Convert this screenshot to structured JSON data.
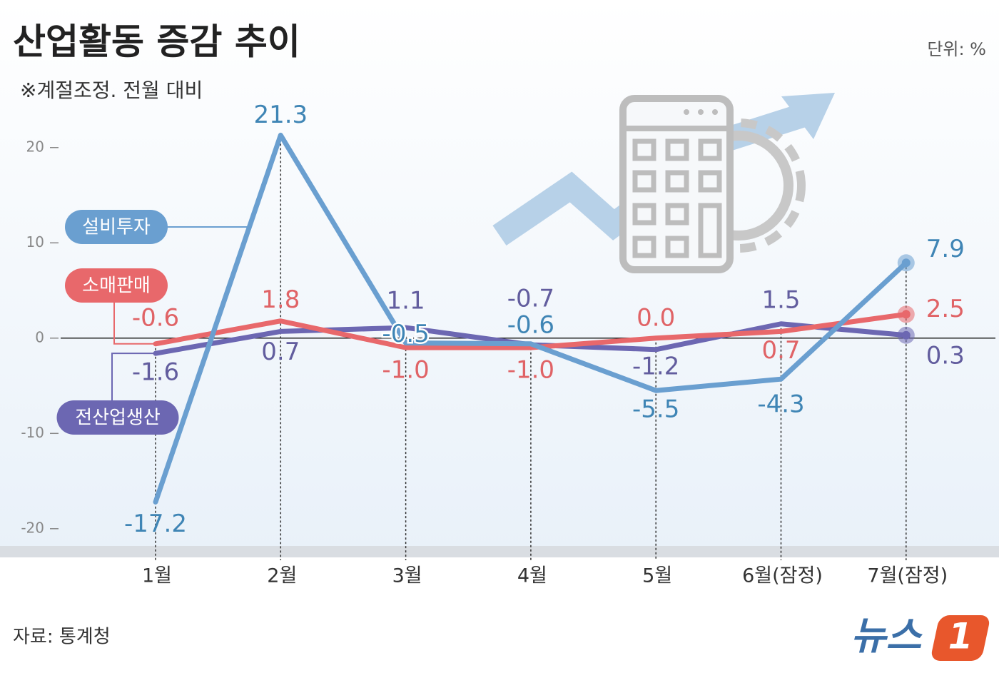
{
  "chart_data": {
    "type": "line",
    "title": "산업활동 증감 추이",
    "subtitle": "※계절조정. 전월 대비",
    "unit": "단위: %",
    "source": "자료: 통계청",
    "logo": "뉴스",
    "logo_badge": "1",
    "categories": [
      "1월",
      "2월",
      "3월",
      "4월",
      "5월",
      "6월(잠정)",
      "7월(잠정)"
    ],
    "series": [
      {
        "name": "설비투자",
        "color": "#6a9fd0",
        "label_color": "#3f85b5",
        "values": [
          -17.2,
          21.3,
          -0.5,
          -0.6,
          -5.5,
          -4.3,
          7.9
        ],
        "value_labels": [
          "-17.2",
          "21.3",
          "-0.5",
          "-0.6",
          "-5.5",
          "-4.3",
          "7.9"
        ]
      },
      {
        "name": "소매판매",
        "color": "#e8686b",
        "label_color": "#e06366",
        "values": [
          -0.6,
          1.8,
          -1.0,
          -1.0,
          0.0,
          0.7,
          2.5
        ],
        "value_labels": [
          "-0.6",
          "1.8",
          "-1.0",
          "-1.0",
          "0.0",
          "0.7",
          "2.5"
        ]
      },
      {
        "name": "전산업생산",
        "color": "#6c67b2",
        "label_color": "#625d9e",
        "values": [
          -1.6,
          0.7,
          1.1,
          -0.7,
          -1.2,
          1.5,
          0.3
        ],
        "value_labels": [
          "-1.6",
          "0.7",
          "1.1",
          "-0.7",
          "-1.2",
          "1.5",
          "0.3"
        ]
      }
    ],
    "ylim": [
      -22,
      25
    ],
    "yticks": [
      -20,
      -10,
      0,
      10,
      20
    ],
    "grid": false
  }
}
